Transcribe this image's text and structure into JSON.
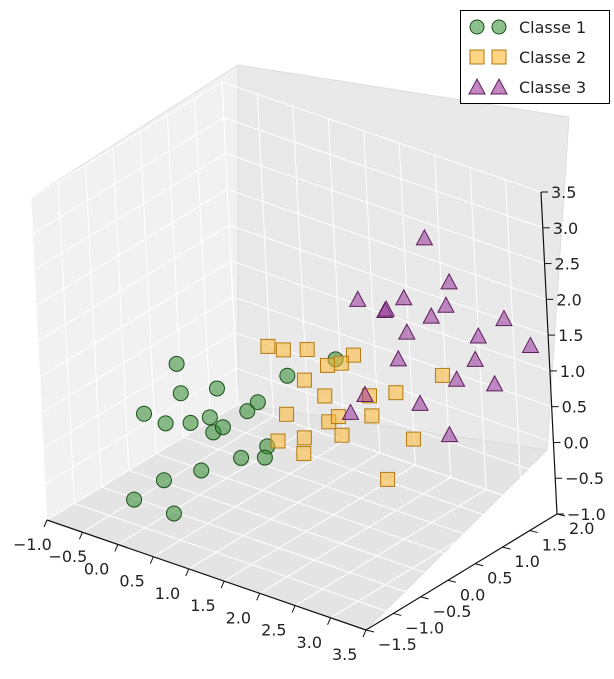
{
  "chart_data": {
    "type": "scatter",
    "projection": "3d",
    "grid": true,
    "legend_position": "top-right",
    "xlim": [
      -1.0,
      3.5
    ],
    "ylim": [
      -1.5,
      2.0
    ],
    "zlim": [
      -1.0,
      3.5
    ],
    "x_ticks": [
      "−1.0",
      "−0.5",
      "0.0",
      "0.5",
      "1.0",
      "1.5",
      "2.0",
      "2.5",
      "3.0",
      "3.5"
    ],
    "y_ticks": [
      "−1.5",
      "−1.0",
      "−0.5",
      "0.0",
      "0.5",
      "1.0",
      "1.5",
      "2.0"
    ],
    "z_ticks": [
      "−1.0",
      "−0.5",
      "0.0",
      "0.5",
      "1.0",
      "1.5",
      "2.0",
      "2.5",
      "3.0",
      "3.5"
    ],
    "series": [
      {
        "name": "Classe 1",
        "marker": "circle",
        "color": "#2e8b2e",
        "points": [
          [
            -0.4,
            0.2,
            0.6
          ],
          [
            -0.2,
            0.0,
            0.35
          ],
          [
            -0.5,
            -0.3,
            0.1
          ],
          [
            0.0,
            -0.1,
            0.05
          ],
          [
            0.2,
            0.0,
            0.15
          ],
          [
            0.4,
            -0.2,
            0.1
          ],
          [
            0.3,
            0.1,
            0.0
          ],
          [
            0.5,
            0.3,
            0.2
          ],
          [
            0.7,
            -0.1,
            -0.2
          ],
          [
            -0.6,
            0.2,
            -0.3
          ],
          [
            0.0,
            0.4,
            0.3
          ],
          [
            0.6,
            0.5,
            -0.35
          ],
          [
            0.9,
            0.0,
            0.6
          ],
          [
            -0.1,
            -0.5,
            -0.6
          ],
          [
            0.2,
            -0.2,
            -0.5
          ],
          [
            0.8,
            0.2,
            -0.3
          ],
          [
            1.1,
            0.3,
            0.9
          ],
          [
            -0.3,
            -0.8,
            -0.8
          ],
          [
            0.1,
            -0.6,
            -0.95
          ],
          [
            1.4,
            0.8,
            1.0
          ]
        ]
      },
      {
        "name": "Classe 2",
        "marker": "square",
        "color": "#ffb833",
        "points": [
          [
            0.6,
            0.6,
            1.0
          ],
          [
            0.9,
            0.5,
            1.1
          ],
          [
            1.0,
            0.8,
            1.0
          ],
          [
            1.1,
            0.6,
            0.7
          ],
          [
            1.2,
            0.9,
            0.8
          ],
          [
            1.3,
            0.7,
            0.5
          ],
          [
            1.5,
            1.0,
            1.0
          ],
          [
            1.5,
            0.5,
            0.3
          ],
          [
            1.4,
            0.8,
            0.2
          ],
          [
            1.7,
            1.0,
            0.5
          ],
          [
            1.3,
            0.3,
            0.1
          ],
          [
            1.8,
            0.9,
            0.3
          ],
          [
            1.0,
            0.2,
            0.0
          ],
          [
            0.9,
            0.5,
            0.2
          ],
          [
            1.6,
            0.6,
            0.1
          ],
          [
            2.0,
            1.1,
            0.6
          ],
          [
            1.2,
            0.4,
            -0.2
          ],
          [
            1.4,
            0.9,
            0.9
          ],
          [
            2.3,
            1.0,
            0.1
          ],
          [
            2.6,
            1.2,
            1.0
          ],
          [
            1.9,
            1.0,
            -0.6
          ]
        ]
      },
      {
        "name": "Classe 3",
        "marker": "triangle",
        "color": "#993399",
        "points": [
          [
            1.6,
            1.0,
            1.8
          ],
          [
            1.9,
            1.1,
            1.7
          ],
          [
            2.0,
            1.0,
            1.8
          ],
          [
            2.1,
            1.2,
            1.9
          ],
          [
            2.2,
            1.1,
            1.5
          ],
          [
            2.4,
            1.3,
            1.7
          ],
          [
            2.6,
            1.4,
            2.2
          ],
          [
            2.7,
            1.2,
            2.0
          ],
          [
            2.9,
            1.5,
            1.5
          ],
          [
            3.0,
            1.3,
            1.3
          ],
          [
            3.2,
            1.6,
            1.8
          ],
          [
            3.4,
            1.8,
            1.4
          ],
          [
            2.6,
            1.0,
            3.0
          ],
          [
            2.8,
            1.2,
            1.0
          ],
          [
            3.1,
            1.5,
            0.9
          ],
          [
            2.5,
            0.9,
            0.7
          ],
          [
            2.3,
            0.8,
            1.3
          ],
          [
            1.9,
            0.4,
            0.6
          ],
          [
            2.9,
            0.9,
            0.4
          ],
          [
            2.2,
            0.3,
            1.0
          ]
        ]
      }
    ]
  }
}
